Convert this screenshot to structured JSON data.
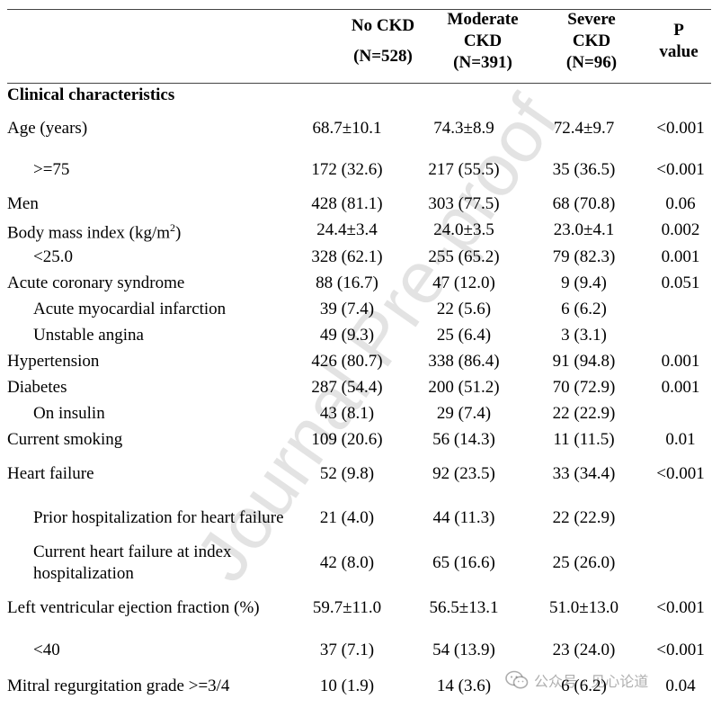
{
  "columns": {
    "no_ckd": {
      "line1": "No CKD",
      "line2": "(N=528)"
    },
    "moderate": {
      "line1": "Moderate",
      "line2": "CKD",
      "line3": "(N=391)"
    },
    "severe": {
      "line1": "Severe",
      "line2": "CKD",
      "line3": "(N=96)"
    },
    "p": {
      "line1": "P",
      "line2": "value"
    }
  },
  "section_title": "Clinical characteristics",
  "rows": [
    {
      "label": "Age (years)",
      "c1": "68.7±10.1",
      "c2": "74.3±8.9",
      "c3": "72.4±9.7",
      "p": "<0.001"
    },
    {
      "label": ">=75",
      "c1": "172 (32.6)",
      "c2": "217 (55.5)",
      "c3": "35 (36.5)",
      "p": "<0.001"
    },
    {
      "label": "Men",
      "c1": "428 (81.1)",
      "c2": "303 (77.5)",
      "c3": "68 (70.8)",
      "p": "0.06"
    },
    {
      "label": "Body mass index (kg/m",
      "sup": "2",
      "label_end": ")",
      "c1": "24.4±3.4",
      "c2": "24.0±3.5",
      "c3": "23.0±4.1",
      "p": "0.002"
    },
    {
      "label": "<25.0",
      "c1": "328 (62.1)",
      "c2": "255 (65.2)",
      "c3": "79 (82.3)",
      "p": "0.001"
    },
    {
      "label": "Acute coronary syndrome",
      "c1": "88 (16.7)",
      "c2": "47 (12.0)",
      "c3": "9 (9.4)",
      "p": "0.051"
    },
    {
      "label": "Acute myocardial infarction",
      "c1": "39 (7.4)",
      "c2": "22 (5.6)",
      "c3": "6 (6.2)",
      "p": ""
    },
    {
      "label": "Unstable angina",
      "c1": "49 (9.3)",
      "c2": "25 (6.4)",
      "c3": "3 (3.1)",
      "p": ""
    },
    {
      "label": "Hypertension",
      "c1": "426 (80.7)",
      "c2": "338 (86.4)",
      "c3": "91 (94.8)",
      "p": "0.001"
    },
    {
      "label": "Diabetes",
      "c1": "287 (54.4)",
      "c2": "200 (51.2)",
      "c3": "70 (72.9)",
      "p": "0.001"
    },
    {
      "label": "On insulin",
      "c1": "43 (8.1)",
      "c2": "29 (7.4)",
      "c3": "22 (22.9)",
      "p": ""
    },
    {
      "label": "Current smoking",
      "c1": "109 (20.6)",
      "c2": "56 (14.3)",
      "c3": "11 (11.5)",
      "p": "0.01"
    },
    {
      "label": "Heart failure",
      "c1": "52 (9.8)",
      "c2": "92 (23.5)",
      "c3": "33 (34.4)",
      "p": "<0.001"
    },
    {
      "label": "Prior hospitalization for heart failure",
      "c1": "21 (4.0)",
      "c2": "44 (11.3)",
      "c3": "22 (22.9)",
      "p": ""
    },
    {
      "label": "Current heart failure at index hospitalization",
      "c1": "42 (8.0)",
      "c2": "65 (16.6)",
      "c3": "25 (26.0)",
      "p": ""
    },
    {
      "label": "Left ventricular ejection fraction (%)",
      "c1": "59.7±11.0",
      "c2": "56.5±13.1",
      "c3": "51.0±13.0",
      "p": "<0.001"
    },
    {
      "label": "<40",
      "c1": "37 (7.1)",
      "c2": "54 (13.9)",
      "c3": "23 (24.0)",
      "p": "<0.001"
    },
    {
      "label": "Mitral regurgitation grade >=3/4",
      "c1": "10 (1.9)",
      "c2": "14 (3.6)",
      "c3": "6 (6.2)",
      "p": "0.04"
    }
  ],
  "watermark": "Journal Pre-proof",
  "wechat": "公众号 · 见心论道"
}
